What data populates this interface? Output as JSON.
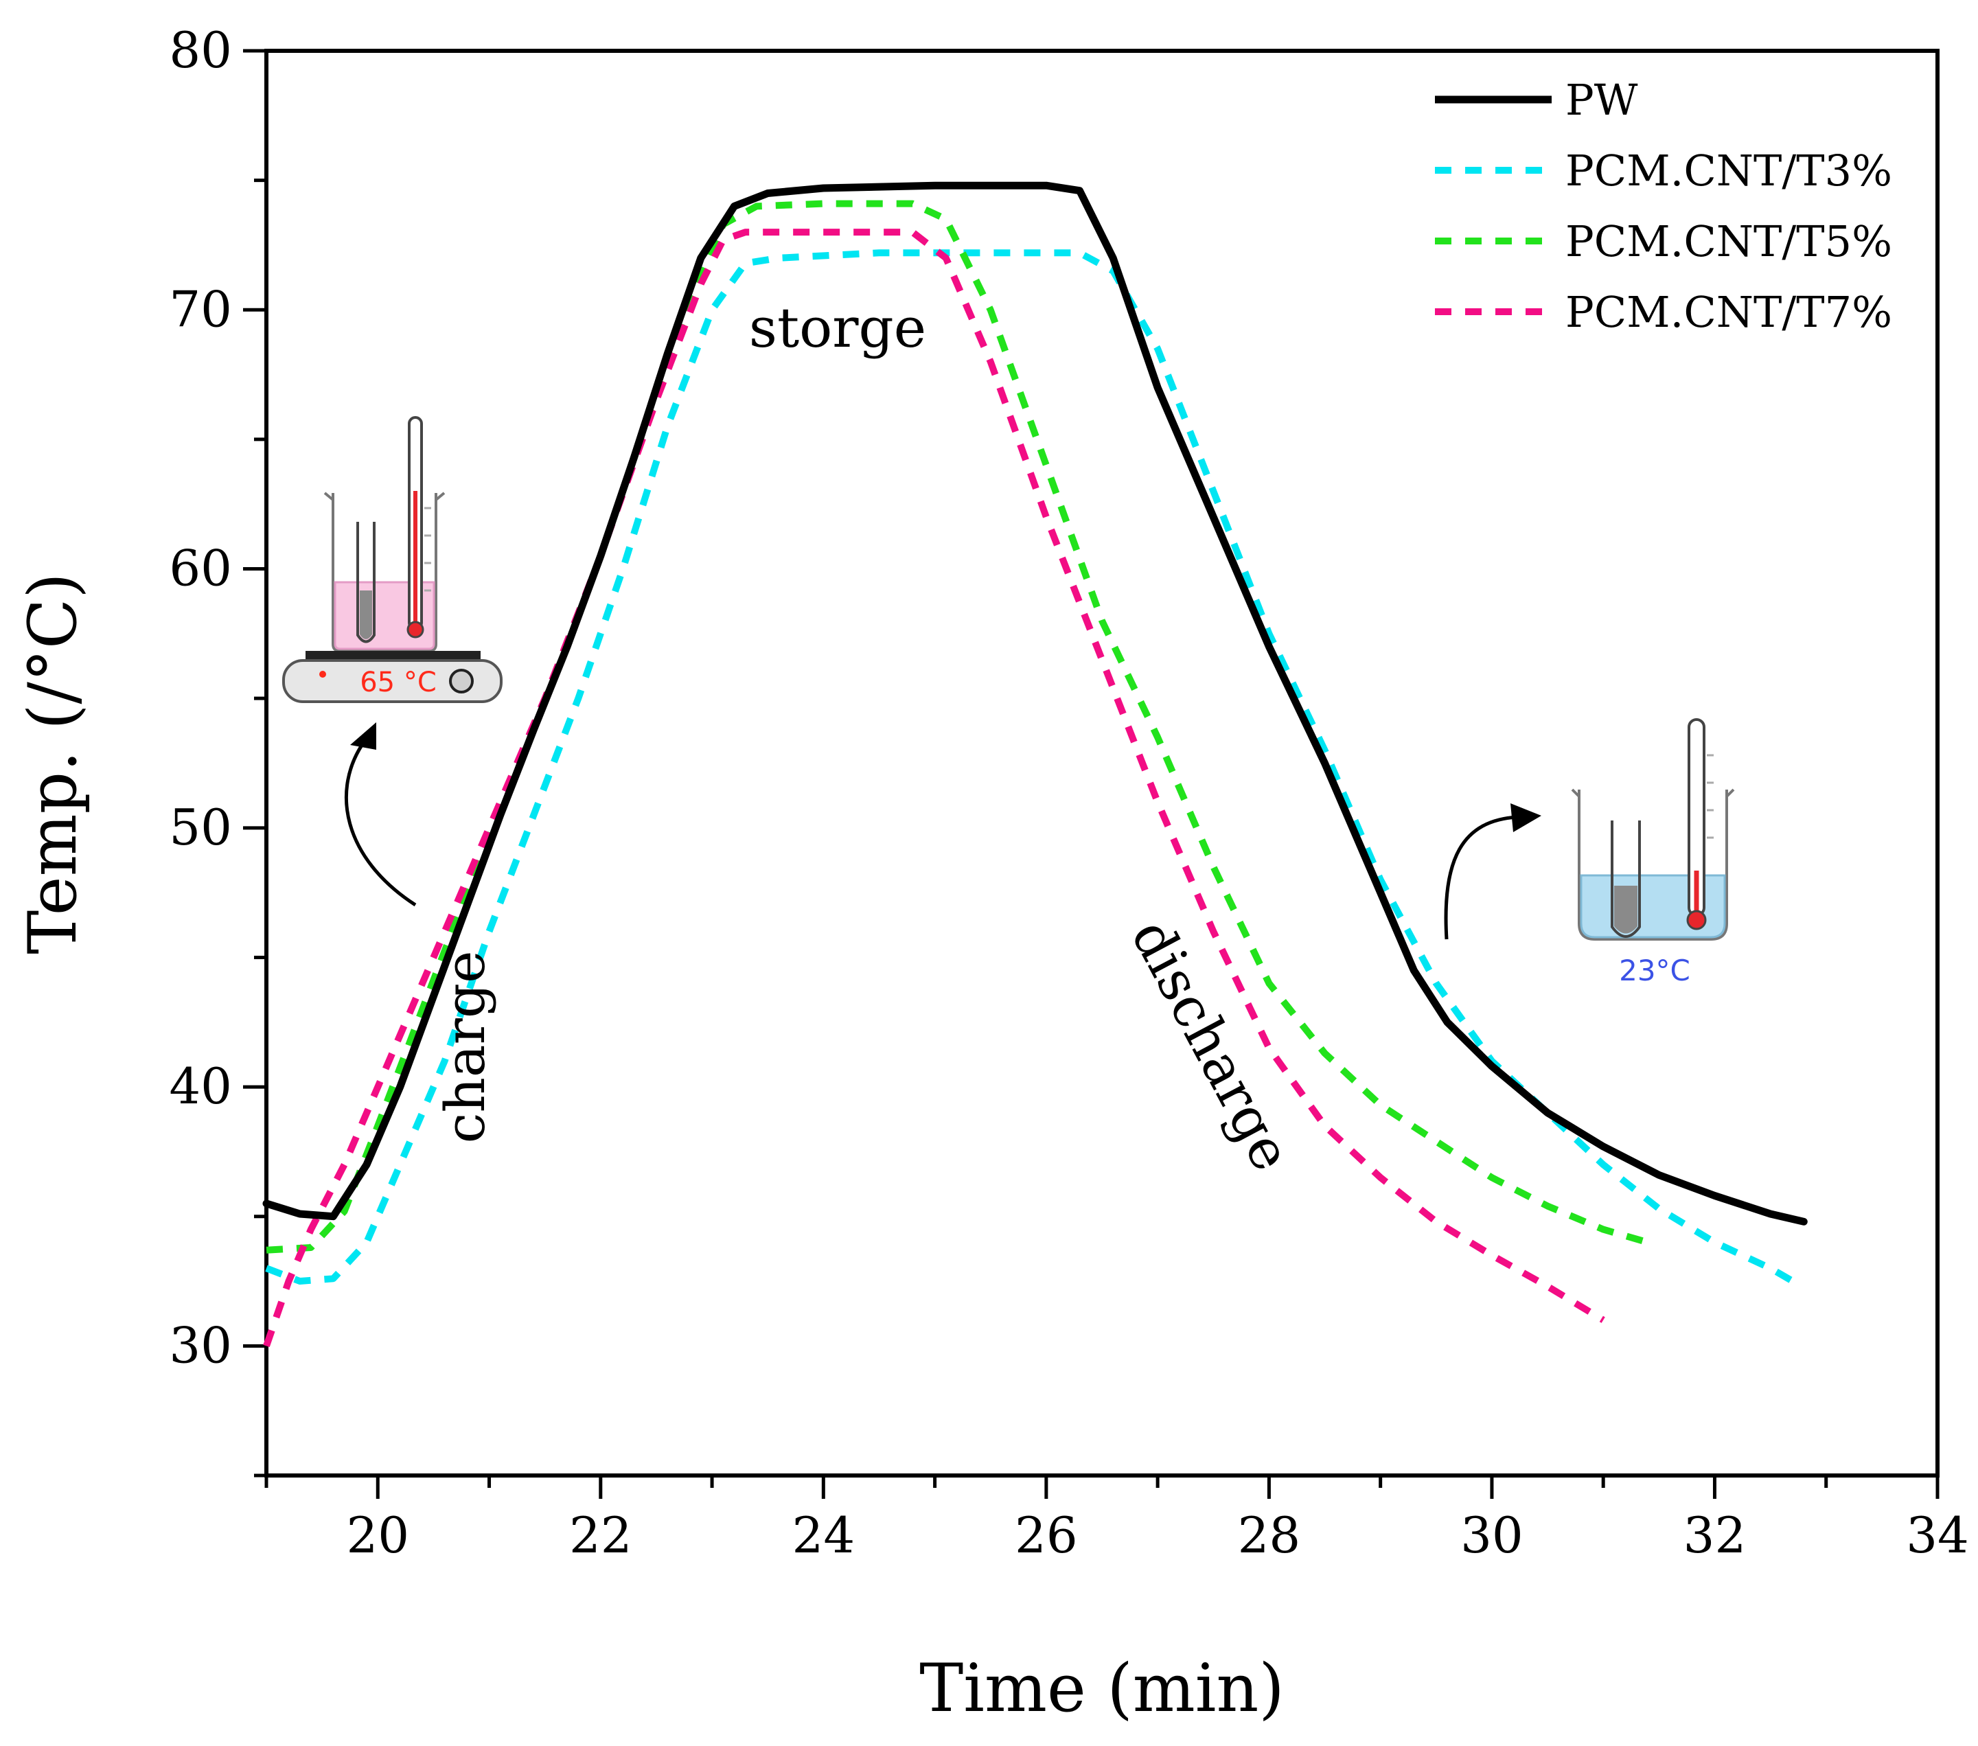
{
  "chart_data": {
    "type": "line",
    "title": "",
    "xlabel": "Time (min)",
    "ylabel": "Temp. (/°C)",
    "xlim": [
      19,
      34
    ],
    "ylim": [
      25,
      80
    ],
    "x_ticks": [
      20,
      22,
      24,
      26,
      28,
      30,
      32,
      34
    ],
    "y_ticks": [
      30,
      40,
      50,
      60,
      70,
      80
    ],
    "grid": false,
    "legend_position": "top-right",
    "series": [
      {
        "name": "PW",
        "color": "#000000",
        "style": "solid",
        "points": [
          [
            19.0,
            35.5
          ],
          [
            19.3,
            35.1
          ],
          [
            19.6,
            35.0
          ],
          [
            19.9,
            37.0
          ],
          [
            20.2,
            40.0
          ],
          [
            20.5,
            43.5
          ],
          [
            20.8,
            47.0
          ],
          [
            21.1,
            50.5
          ],
          [
            21.4,
            53.8
          ],
          [
            21.7,
            57.0
          ],
          [
            22.0,
            60.5
          ],
          [
            22.3,
            64.3
          ],
          [
            22.6,
            68.3
          ],
          [
            22.9,
            72.0
          ],
          [
            23.2,
            74.0
          ],
          [
            23.5,
            74.5
          ],
          [
            24.0,
            74.7
          ],
          [
            25.0,
            74.8
          ],
          [
            26.0,
            74.8
          ],
          [
            26.3,
            74.6
          ],
          [
            26.6,
            72.0
          ],
          [
            27.0,
            67.0
          ],
          [
            27.5,
            62.0
          ],
          [
            28.0,
            57.0
          ],
          [
            28.5,
            52.5
          ],
          [
            29.0,
            47.5
          ],
          [
            29.3,
            44.5
          ],
          [
            29.6,
            42.5
          ],
          [
            30.0,
            40.8
          ],
          [
            30.5,
            39.0
          ],
          [
            31.0,
            37.7
          ],
          [
            31.5,
            36.6
          ],
          [
            32.0,
            35.8
          ],
          [
            32.5,
            35.1
          ],
          [
            32.8,
            34.8
          ]
        ]
      },
      {
        "name": "PCM.CNT/T3%",
        "color": "#00e5f2",
        "style": "dashed",
        "points": [
          [
            19.0,
            33.0
          ],
          [
            19.3,
            32.5
          ],
          [
            19.6,
            32.6
          ],
          [
            19.9,
            34.0
          ],
          [
            20.2,
            37.0
          ],
          [
            20.6,
            41.0
          ],
          [
            21.0,
            46.0
          ],
          [
            21.4,
            50.5
          ],
          [
            21.8,
            55.0
          ],
          [
            22.2,
            60.0
          ],
          [
            22.6,
            65.5
          ],
          [
            23.0,
            70.0
          ],
          [
            23.3,
            71.8
          ],
          [
            23.6,
            72.0
          ],
          [
            24.5,
            72.2
          ],
          [
            25.5,
            72.2
          ],
          [
            26.3,
            72.2
          ],
          [
            26.6,
            71.5
          ],
          [
            27.0,
            68.5
          ],
          [
            27.5,
            63.0
          ],
          [
            28.0,
            57.5
          ],
          [
            28.5,
            53.0
          ],
          [
            29.0,
            48.0
          ],
          [
            29.5,
            44.0
          ],
          [
            30.0,
            41.0
          ],
          [
            30.5,
            39.0
          ],
          [
            31.0,
            37.0
          ],
          [
            31.5,
            35.3
          ],
          [
            32.0,
            34.0
          ],
          [
            32.5,
            33.0
          ],
          [
            32.7,
            32.5
          ]
        ]
      },
      {
        "name": "PCM.CNT/T5%",
        "color": "#22e21c",
        "style": "dashed",
        "points": [
          [
            19.0,
            33.7
          ],
          [
            19.4,
            33.8
          ],
          [
            19.7,
            35.2
          ],
          [
            20.0,
            38.5
          ],
          [
            20.4,
            43.0
          ],
          [
            20.8,
            47.5
          ],
          [
            21.2,
            51.8
          ],
          [
            21.6,
            56.0
          ],
          [
            22.0,
            60.5
          ],
          [
            22.4,
            65.5
          ],
          [
            22.8,
            70.3
          ],
          [
            23.1,
            73.3
          ],
          [
            23.4,
            74.0
          ],
          [
            24.0,
            74.1
          ],
          [
            24.8,
            74.1
          ],
          [
            25.1,
            73.5
          ],
          [
            25.5,
            70.0
          ],
          [
            26.0,
            64.0
          ],
          [
            26.5,
            58.0
          ],
          [
            27.0,
            53.5
          ],
          [
            27.5,
            48.5
          ],
          [
            28.0,
            44.0
          ],
          [
            28.5,
            41.3
          ],
          [
            29.0,
            39.3
          ],
          [
            29.5,
            37.9
          ],
          [
            30.0,
            36.5
          ],
          [
            30.5,
            35.4
          ],
          [
            31.0,
            34.5
          ],
          [
            31.4,
            34.0
          ]
        ]
      },
      {
        "name": "PCM.CNT/T7%",
        "color": "#f20d84",
        "style": "dashed",
        "points": [
          [
            19.0,
            30.0
          ],
          [
            19.2,
            32.5
          ],
          [
            19.4,
            34.5
          ],
          [
            19.7,
            37.0
          ],
          [
            20.0,
            40.0
          ],
          [
            20.5,
            45.0
          ],
          [
            21.0,
            50.0
          ],
          [
            21.5,
            55.0
          ],
          [
            22.0,
            60.5
          ],
          [
            22.5,
            66.5
          ],
          [
            22.9,
            71.0
          ],
          [
            23.1,
            72.7
          ],
          [
            23.3,
            73.0
          ],
          [
            24.0,
            73.0
          ],
          [
            24.8,
            73.0
          ],
          [
            25.1,
            72.0
          ],
          [
            25.5,
            68.0
          ],
          [
            26.0,
            62.0
          ],
          [
            26.5,
            56.5
          ],
          [
            27.0,
            51.0
          ],
          [
            27.5,
            46.0
          ],
          [
            28.0,
            41.5
          ],
          [
            28.5,
            38.5
          ],
          [
            29.0,
            36.5
          ],
          [
            29.5,
            34.8
          ],
          [
            30.0,
            33.5
          ],
          [
            30.5,
            32.3
          ],
          [
            31.0,
            31.0
          ]
        ]
      }
    ],
    "annotations": [
      "storge",
      "charge",
      "discharge"
    ],
    "hot_bath_label": "65 °C",
    "cold_bath_label": "23°C"
  },
  "colors": {
    "hot_liquid": "#f9c8e2",
    "cold_liquid": "#b4def2",
    "thermometer_red": "#e8262c"
  }
}
